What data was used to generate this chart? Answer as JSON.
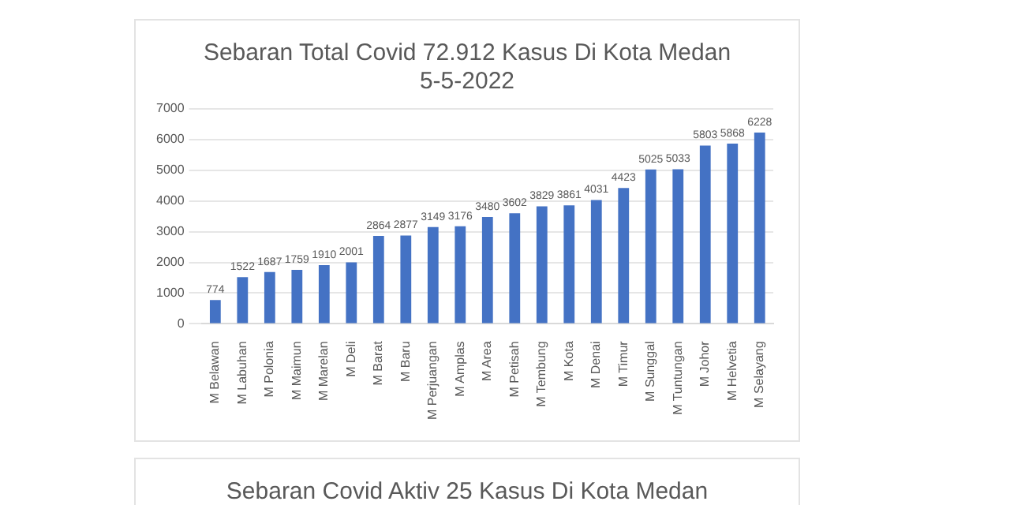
{
  "chart_data": [
    {
      "type": "bar",
      "title": "Sebaran Total Covid 72.912 Kasus Di Kota Medan",
      "subtitle": "5-5-2022",
      "categories": [
        "M Belawan",
        "M Labuhan",
        "M Polonia",
        "M Maimun",
        "M Marelan",
        "M Deli",
        "M Barat",
        "M Baru",
        "M Perjuangan",
        "M Amplas",
        "M Area",
        "M Petisah",
        "M Tembung",
        "M Kota",
        "M Denai",
        "M Timur",
        "M Sunggal",
        "M Tuntungan",
        "M Johor",
        "M Helvetia",
        "M Selayang"
      ],
      "values": [
        774,
        1522,
        1687,
        1759,
        1910,
        2001,
        2864,
        2877,
        3149,
        3176,
        3480,
        3602,
        3829,
        3861,
        4031,
        4423,
        5025,
        5033,
        5803,
        5868,
        6228
      ],
      "color": "#4472c4",
      "ylim": [
        0,
        7000
      ],
      "yticks": [
        0,
        1000,
        2000,
        3000,
        4000,
        5000,
        6000,
        7000
      ],
      "grid": "y",
      "data_labels": true
    },
    {
      "type": "other",
      "title": "Sebaran Covid Aktiv 25 Kasus Di Kota Medan"
    }
  ]
}
